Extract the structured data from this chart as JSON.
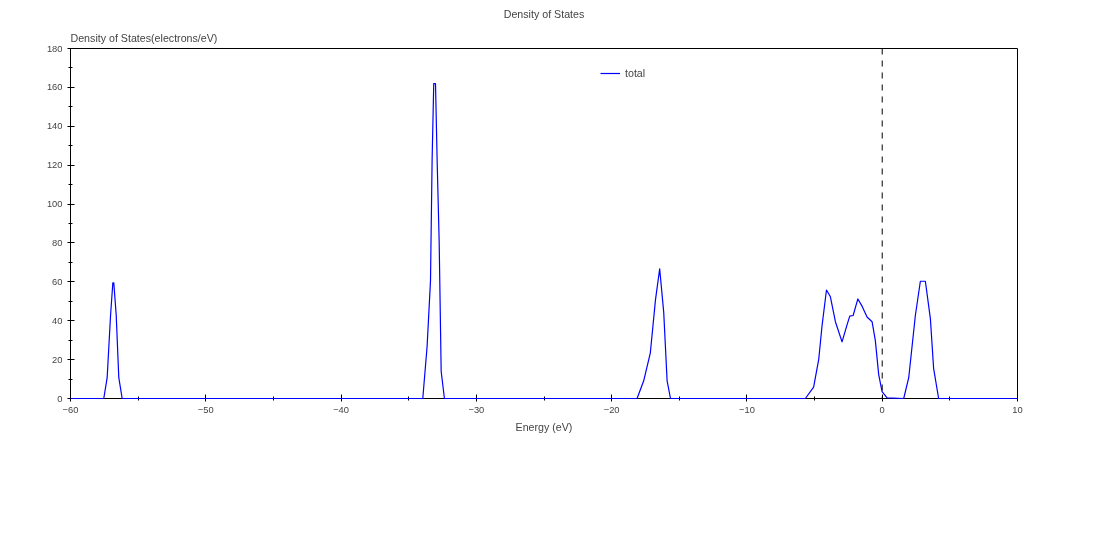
{
  "chart_data": {
    "type": "line",
    "title": "Density of States",
    "xlabel": "Energy (eV)",
    "ylabel": "Density of States(electrons/eV)",
    "xlim": [
      -60,
      10
    ],
    "xticks": [
      -60,
      -50,
      -40,
      -30,
      -20,
      -10,
      0,
      10
    ],
    "ylim": [
      0,
      180
    ],
    "yticks": [
      0,
      20,
      40,
      60,
      80,
      100,
      120,
      140,
      160,
      180
    ],
    "grid": false,
    "legend": "top",
    "line_style": "solid",
    "ref_lines": [
      {
        "axis": "x",
        "value": 0,
        "color": "#000000",
        "line_style": "dashed"
      }
    ],
    "series": [
      {
        "name": "total",
        "color": "#0000ff",
        "x": [
          -60,
          -57.54,
          -57.29,
          -57.04,
          -56.87,
          -56.8,
          -56.62,
          -56.43,
          -56.18,
          -33.96,
          -33.64,
          -33.39,
          -33.27,
          -33.15,
          -33.02,
          -32.9,
          -32.75,
          -32.6,
          -32.36,
          -18.12,
          -17.63,
          -17.14,
          -16.76,
          -16.45,
          -16.15,
          -15.9,
          -15.65,
          -5.68,
          -5.07,
          -4.69,
          -4.44,
          -4.12,
          -3.83,
          -3.46,
          -2.97,
          -2.6,
          -2.4,
          -2.15,
          -1.8,
          -1.49,
          -1.12,
          -0.75,
          -0.51,
          -0.26,
          -0.01,
          0.36,
          1.59,
          1.96,
          2.45,
          2.82,
          3.19,
          3.56,
          3.8,
          4.17,
          10
        ],
        "values": [
          0,
          0,
          10.7,
          42.7,
          59.5,
          59.5,
          42.7,
          10.7,
          0,
          0,
          26.9,
          60.5,
          122.9,
          161.9,
          161.9,
          122.7,
          81.1,
          13.9,
          0,
          0,
          9.1,
          23.5,
          50.7,
          66.7,
          44.3,
          9.1,
          0,
          0,
          5.9,
          20.3,
          37.9,
          55.8,
          52.3,
          39.5,
          29.1,
          37.9,
          42.4,
          42.7,
          51.2,
          47.5,
          41.9,
          39.5,
          29.9,
          12.3,
          3.5,
          0.3,
          0,
          10.7,
          42.7,
          60.3,
          60.3,
          41.1,
          15.5,
          0,
          0
        ]
      }
    ]
  }
}
